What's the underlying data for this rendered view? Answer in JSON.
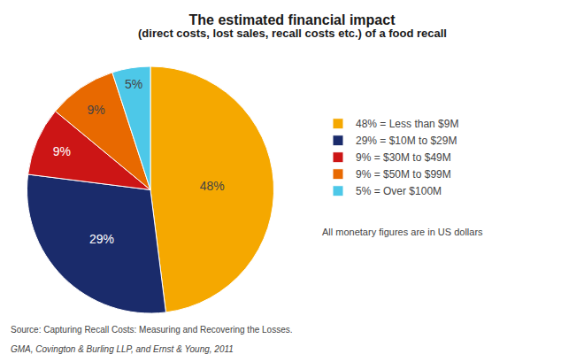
{
  "chart_data": {
    "type": "pie",
    "title": "The estimated financial impact",
    "subtitle": "(direct costs, lost sales, recall costs etc.) of a food recall",
    "categories": [
      "48% = Less than $9M",
      "29% = $10M to $29M",
      "9% = $30M to $49M",
      "9% = $50M to $99M",
      "5% = Over $100M"
    ],
    "values": [
      48,
      29,
      9,
      9,
      5
    ],
    "value_labels": [
      "48%",
      "29%",
      "9%",
      "9%",
      "5%"
    ],
    "data_labels": true,
    "colors": [
      "#F5A800",
      "#1A2B6B",
      "#CC1515",
      "#E86900",
      "#4DC8E8"
    ],
    "legend": "right",
    "annotations": [
      "All monetary figures are in US dollars",
      "Source: Capturing Recall Costs: Measuring and Recovering the Losses.",
      "GMA, Covington & Burling LLP, and Ernst & Young, 2011"
    ]
  }
}
